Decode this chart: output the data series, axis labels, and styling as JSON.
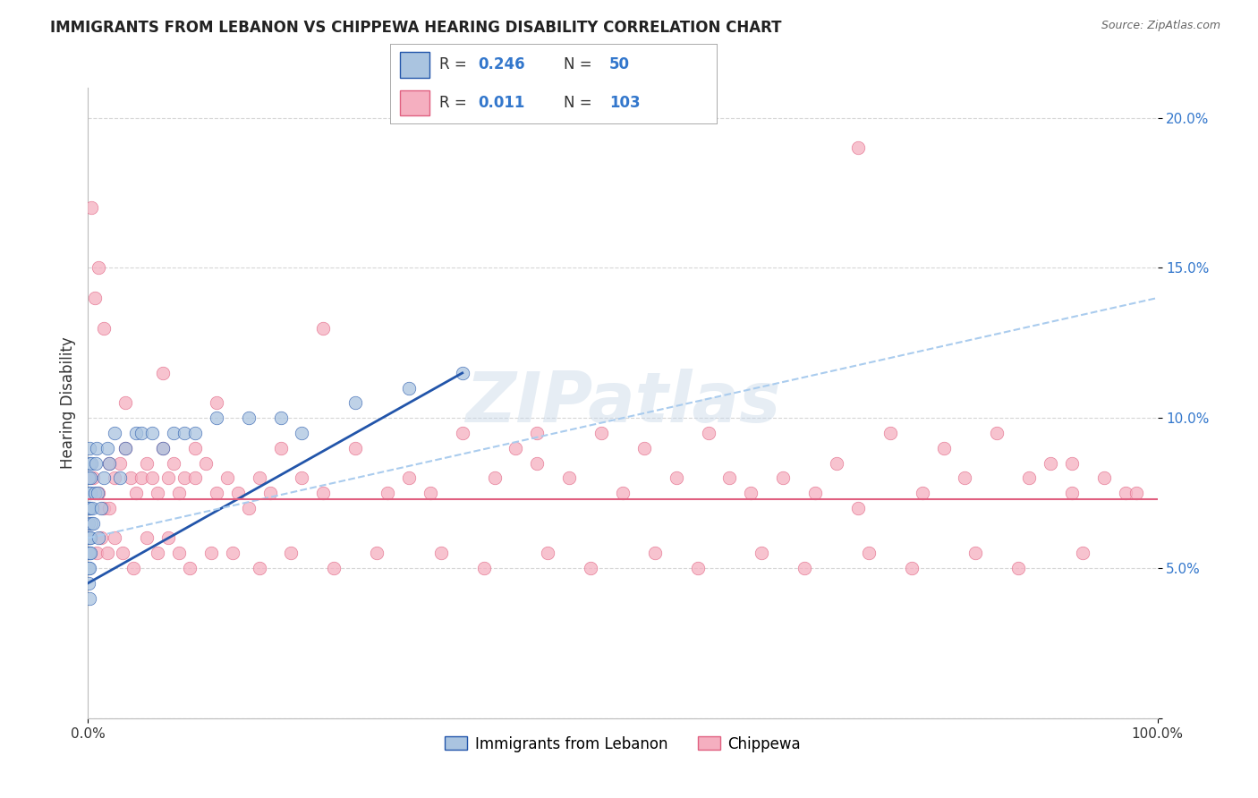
{
  "title": "IMMIGRANTS FROM LEBANON VS CHIPPEWA HEARING DISABILITY CORRELATION CHART",
  "source": "Source: ZipAtlas.com",
  "ylabel": "Hearing Disability",
  "xlim": [
    0.0,
    100.0
  ],
  "ylim": [
    0.0,
    21.0
  ],
  "R_lebanon": 0.246,
  "N_lebanon": 50,
  "R_chippewa": 0.011,
  "N_chippewa": 103,
  "color_lebanon": "#aac4e0",
  "color_chippewa": "#f5afc0",
  "trendline_color_lebanon": "#2255aa",
  "trendline_color_chippewa": "#aaccee",
  "horizontal_line_color": "#e06080",
  "horizontal_line_y": 7.3,
  "background_color": "#ffffff",
  "grid_color": "#cccccc",
  "title_fontsize": 12,
  "watermark": "ZIPatlas",
  "lebanon_x": [
    0.05,
    0.05,
    0.05,
    0.05,
    0.05,
    0.05,
    0.05,
    0.05,
    0.1,
    0.1,
    0.1,
    0.1,
    0.1,
    0.15,
    0.15,
    0.15,
    0.2,
    0.2,
    0.25,
    0.25,
    0.3,
    0.3,
    0.4,
    0.5,
    0.6,
    0.7,
    0.8,
    0.9,
    1.0,
    1.2,
    1.5,
    1.8,
    2.0,
    2.5,
    3.0,
    3.5,
    4.5,
    5.0,
    6.0,
    7.0,
    8.0,
    9.0,
    10.0,
    12.0,
    15.0,
    18.0,
    20.0,
    25.0,
    30.0,
    35.0
  ],
  "lebanon_y": [
    4.5,
    5.0,
    5.5,
    6.0,
    6.5,
    7.0,
    7.5,
    8.0,
    4.0,
    5.0,
    6.0,
    7.0,
    8.5,
    5.5,
    7.0,
    9.0,
    6.0,
    8.0,
    5.5,
    7.5,
    6.5,
    8.5,
    7.0,
    6.5,
    7.5,
    8.5,
    9.0,
    7.5,
    6.0,
    7.0,
    8.0,
    9.0,
    8.5,
    9.5,
    8.0,
    9.0,
    9.5,
    9.5,
    9.5,
    9.0,
    9.5,
    9.5,
    9.5,
    10.0,
    10.0,
    10.0,
    9.5,
    10.5,
    11.0,
    11.5
  ],
  "chippewa_x": [
    0.5,
    1.0,
    1.0,
    1.5,
    2.0,
    2.0,
    2.5,
    3.0,
    3.5,
    4.0,
    4.5,
    5.0,
    5.5,
    6.0,
    6.5,
    7.0,
    7.5,
    8.0,
    8.5,
    9.0,
    10.0,
    10.0,
    11.0,
    12.0,
    13.0,
    14.0,
    15.0,
    16.0,
    17.0,
    18.0,
    20.0,
    22.0,
    25.0,
    28.0,
    30.0,
    32.0,
    35.0,
    38.0,
    40.0,
    42.0,
    45.0,
    48.0,
    50.0,
    52.0,
    55.0,
    58.0,
    60.0,
    62.0,
    65.0,
    68.0,
    70.0,
    72.0,
    75.0,
    78.0,
    80.0,
    82.0,
    85.0,
    88.0,
    90.0,
    92.0,
    95.0,
    97.0,
    0.8,
    1.2,
    1.8,
    2.5,
    3.2,
    4.2,
    5.5,
    6.5,
    7.5,
    8.5,
    9.5,
    11.5,
    13.5,
    16.0,
    19.0,
    23.0,
    27.0,
    33.0,
    37.0,
    43.0,
    47.0,
    53.0,
    57.0,
    63.0,
    67.0,
    73.0,
    77.0,
    83.0,
    87.0,
    93.0,
    0.3,
    0.6,
    1.5,
    3.5,
    7.0,
    12.0,
    22.0,
    42.0,
    72.0,
    92.0,
    98.0
  ],
  "chippewa_y": [
    8.0,
    15.0,
    7.5,
    7.0,
    8.5,
    7.0,
    8.0,
    8.5,
    9.0,
    8.0,
    7.5,
    8.0,
    8.5,
    8.0,
    7.5,
    9.0,
    8.0,
    8.5,
    7.5,
    8.0,
    9.0,
    8.0,
    8.5,
    7.5,
    8.0,
    7.5,
    7.0,
    8.0,
    7.5,
    9.0,
    8.0,
    7.5,
    9.0,
    7.5,
    8.0,
    7.5,
    9.5,
    8.0,
    9.0,
    8.5,
    8.0,
    9.5,
    7.5,
    9.0,
    8.0,
    9.5,
    8.0,
    7.5,
    8.0,
    7.5,
    8.5,
    7.0,
    9.5,
    7.5,
    9.0,
    8.0,
    9.5,
    8.0,
    8.5,
    7.5,
    8.0,
    7.5,
    5.5,
    6.0,
    5.5,
    6.0,
    5.5,
    5.0,
    6.0,
    5.5,
    6.0,
    5.5,
    5.0,
    5.5,
    5.5,
    5.0,
    5.5,
    5.0,
    5.5,
    5.5,
    5.0,
    5.5,
    5.0,
    5.5,
    5.0,
    5.5,
    5.0,
    5.5,
    5.0,
    5.5,
    5.0,
    5.5,
    17.0,
    14.0,
    13.0,
    10.5,
    11.5,
    10.5,
    13.0,
    9.5,
    19.0,
    8.5,
    7.5
  ],
  "leb_trend_x0": 0.0,
  "leb_trend_y0": 4.5,
  "leb_trend_x1": 35.0,
  "leb_trend_y1": 11.5,
  "chip_trend_x0": 0.0,
  "chip_trend_y0": 6.0,
  "chip_trend_x1": 100.0,
  "chip_trend_y1": 14.0
}
